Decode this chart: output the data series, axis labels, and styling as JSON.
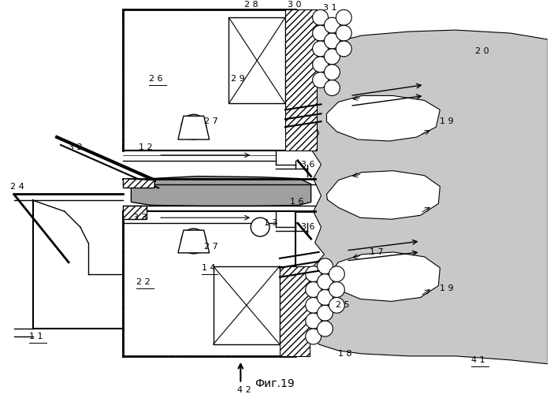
{
  "title": "Фиг.19",
  "bg_color": "#ffffff",
  "flame_color": "#c8c8c8",
  "gray_fuel": "#a0a0a0",
  "white": "#ffffff",
  "black": "#000000"
}
